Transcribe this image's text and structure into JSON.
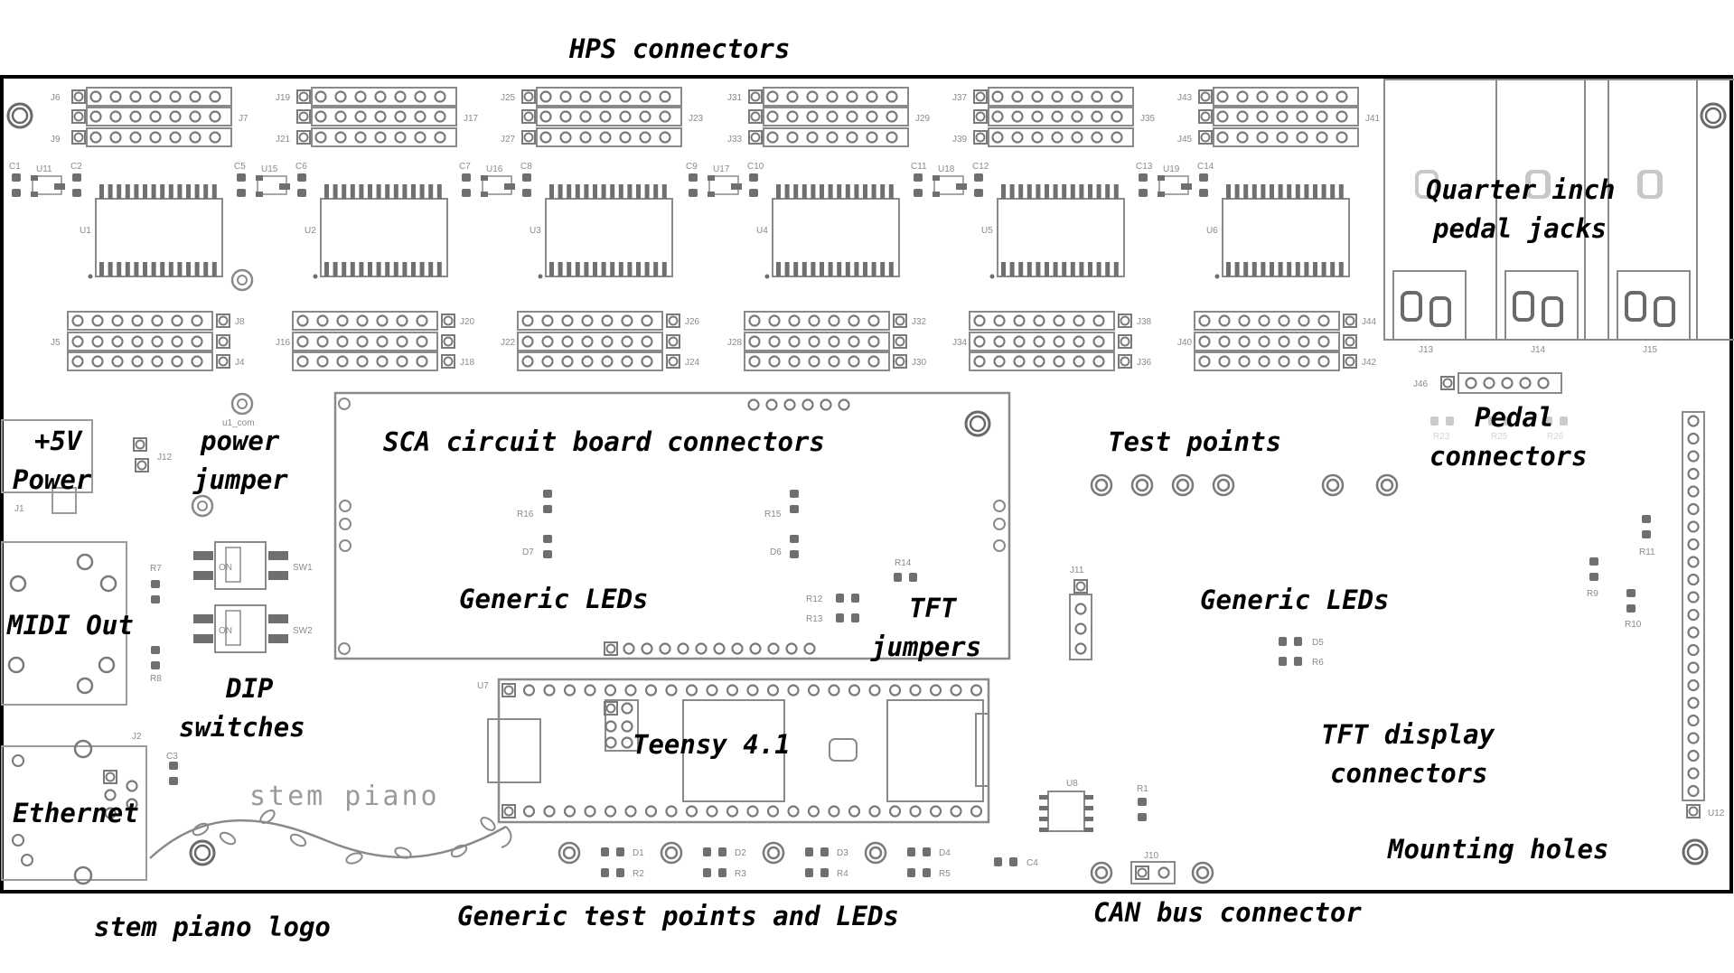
{
  "diagram": {
    "labels": {
      "hps_connectors": "HPS connectors",
      "quarter_inch_1": "Quarter inch",
      "quarter_inch_2": "pedal jacks",
      "pedal_connectors_1": "Pedal",
      "pedal_connectors_2": "connectors",
      "plus5v": "+5V",
      "power": "Power",
      "power_jumper_1": "power",
      "power_jumper_2": "jumper",
      "sca_connectors": "SCA circuit board connectors",
      "test_points": "Test points",
      "generic_leds_left": "Generic LEDs",
      "generic_leds_right": "Generic LEDs",
      "tft_jumpers_1": "TFT",
      "tft_jumpers_2": "jumpers",
      "midi_out": "MIDI Out",
      "dip_switches_1": "DIP",
      "dip_switches_2": "switches",
      "teensy": "Teensy 4.1",
      "tft_display_1": "TFT display",
      "tft_display_2": "connectors",
      "ethernet": "Ethernet",
      "mounting_holes": "Mounting holes",
      "stem_piano_logo": "stem piano logo",
      "generic_test_points": "Generic test points and LEDs",
      "can_bus": "CAN bus connector"
    },
    "logo_text": "stem piano",
    "top_headers": [
      {
        "left": "J6",
        "mid": "",
        "bottom": "J9",
        "right": "J7"
      },
      {
        "left": "J19",
        "mid": "",
        "bottom": "J21",
        "right": "J17"
      },
      {
        "left": "J25",
        "mid": "",
        "bottom": "J27",
        "right": "J23"
      },
      {
        "left": "J31",
        "mid": "",
        "bottom": "J33",
        "right": "J29"
      },
      {
        "left": "J37",
        "mid": "",
        "bottom": "J39",
        "right": "J35"
      },
      {
        "left": "J43",
        "mid": "",
        "bottom": "J45",
        "right": "J41"
      }
    ],
    "bottom_headers": [
      {
        "top": "J8",
        "left": "J5",
        "bottom": "J4"
      },
      {
        "top": "J20",
        "left": "J16",
        "bottom": "J18"
      },
      {
        "top": "J26",
        "left": "J22",
        "bottom": "J24"
      },
      {
        "top": "J32",
        "left": "J28",
        "bottom": "J30"
      },
      {
        "top": "J38",
        "left": "J34",
        "bottom": "J36"
      },
      {
        "top": "J44",
        "left": "J40",
        "bottom": "J42"
      }
    ],
    "chips": [
      "U1",
      "U2",
      "U3",
      "U4",
      "U5",
      "U6"
    ],
    "regulators": [
      {
        "c1": "C1",
        "u": "U11",
        "c2": "C2"
      },
      {
        "c1": "C5",
        "u": "U15",
        "c2": "C6"
      },
      {
        "c1": "C7",
        "u": "U16",
        "c2": "C8"
      },
      {
        "c1": "C9",
        "u": "U17",
        "c2": "C10"
      },
      {
        "c1": "C11",
        "u": "U18",
        "c2": "C12"
      },
      {
        "c1": "C13",
        "u": "U19",
        "c2": "C14"
      }
    ],
    "jacks": [
      "J13",
      "J14",
      "J15"
    ],
    "refs": {
      "j46": "J46",
      "j12": "J12",
      "j1": "J1",
      "j2": "J2",
      "j11": "J11",
      "j10": "J10",
      "u1_com": "u1_com",
      "r7": "R7",
      "r8": "R8",
      "c3": "C3",
      "sw1": "SW1",
      "sw2": "SW2",
      "on": "ON",
      "r16": "R16",
      "d7": "D7",
      "r15": "R15",
      "d6": "D6",
      "r14": "R14",
      "r12": "R12",
      "r13": "R13",
      "u7": "U7",
      "u8": "U8",
      "r1": "R1",
      "c4": "C4",
      "d5": "D5",
      "r6": "R6",
      "r9": "R9",
      "r10": "R10",
      "r11": "R11",
      "u12": "U12",
      "r23": "R23",
      "r25": "R25",
      "r26": "R26"
    },
    "bottom_leds": [
      {
        "d": "D1",
        "r": "R2"
      },
      {
        "d": "D2",
        "r": "R3"
      },
      {
        "d": "D3",
        "r": "R4"
      },
      {
        "d": "D4",
        "r": "R5"
      }
    ]
  }
}
